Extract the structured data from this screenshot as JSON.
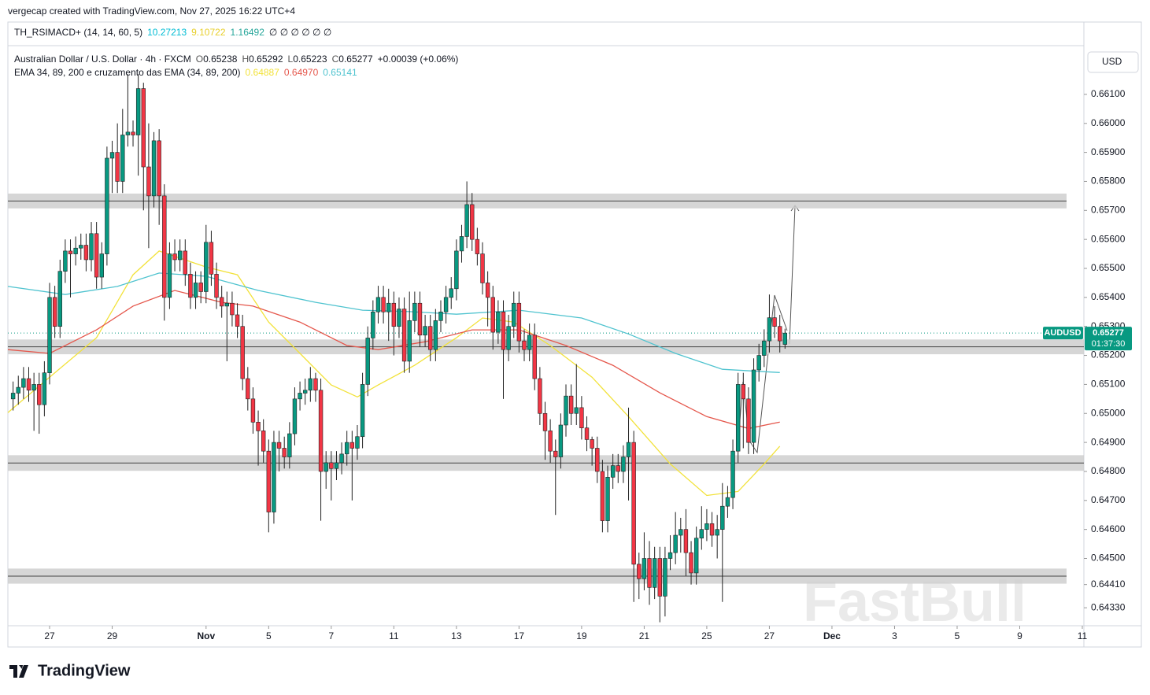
{
  "header": {
    "created": "vergecap created with TradingView.com, Nov 27, 2025 16:22 UTC+4"
  },
  "chart_data": {
    "type": "candlestick",
    "indicator": {
      "name": "TH_RSIMACD+ (14, 14, 60, 5)",
      "values": [
        {
          "text": "10.27213",
          "color": "#00bcd4"
        },
        {
          "text": "9.10722",
          "color": "#e8cf2a"
        },
        {
          "text": "1.16492",
          "color": "#26a69a"
        }
      ],
      "placeholders": "∅ ∅ ∅ ∅ ∅ ∅"
    },
    "symbol": "Australian Dollar / U.S. Dollar · 4h · FXCM",
    "ohlc": [
      {
        "label": "O",
        "value": "0.65238"
      },
      {
        "label": "H",
        "value": "0.65292"
      },
      {
        "label": "L",
        "value": "0.65223"
      },
      {
        "label": "C",
        "value": "0.65277"
      }
    ],
    "change": "+0.00039 (+0.06%)",
    "ema_title": "EMA 34, 89, 200 e cruzamento das EMA (34, 89, 200)",
    "ema": [
      {
        "color": "#f2e23a",
        "legend": "0.64887",
        "x": [
          -1,
          7,
          16,
          23,
          28,
          37,
          43,
          49,
          55,
          61,
          66,
          70,
          77,
          85,
          90,
          96,
          103,
          111,
          118,
          126,
          133,
          139,
          144,
          147
        ],
        "values": [
          0.65003,
          0.65125,
          0.65261,
          0.65478,
          0.6556,
          0.65505,
          0.65478,
          0.65315,
          0.65207,
          0.65098,
          0.65057,
          0.65098,
          0.65166,
          0.65261,
          0.65329,
          0.65315,
          0.65234,
          0.65125,
          0.64989,
          0.64826,
          0.64717,
          0.64731,
          0.64826,
          0.64887
        ]
      },
      {
        "color": "#e5574c",
        "legend": "0.64970",
        "x": [
          -1,
          7,
          16,
          23,
          31,
          40,
          46,
          55,
          64,
          70,
          79,
          88,
          97,
          106,
          115,
          124,
          133,
          141,
          147
        ],
        "values": [
          0.6522,
          0.65207,
          0.65288,
          0.6537,
          0.65424,
          0.65383,
          0.6537,
          0.65315,
          0.65234,
          0.6522,
          0.65247,
          0.65288,
          0.65288,
          0.65234,
          0.65166,
          0.65071,
          0.64989,
          0.64948,
          0.6497
        ]
      },
      {
        "color": "#4fc3cf",
        "legend": "0.65141",
        "x": [
          -1,
          10,
          20,
          28,
          37,
          47,
          58,
          67,
          76,
          85,
          97,
          109,
          118,
          127,
          136,
          147
        ],
        "values": [
          0.65438,
          0.6541,
          0.65438,
          0.65484,
          0.65473,
          0.65424,
          0.65383,
          0.65356,
          0.65351,
          0.65342,
          0.65356,
          0.65329,
          0.65274,
          0.65207,
          0.65152,
          0.65141
        ]
      }
    ],
    "currency": "USD",
    "up_color": "#089981",
    "down_color": "#f23645",
    "open": [
      0.6505,
      0.6507,
      0.6509,
      0.6512,
      0.6508,
      0.651,
      0.6503,
      0.6514,
      0.654,
      0.653,
      0.6549,
      0.6556,
      0.6555,
      0.6557,
      0.6558,
      0.6553,
      0.6562,
      0.6547,
      0.6555,
      0.6588,
      0.659,
      0.658,
      0.6596,
      0.6597,
      0.6596,
      0.6612,
      0.6585,
      0.6575,
      0.6594,
      0.6575,
      0.654,
      0.6555,
      0.6553,
      0.6556,
      0.6548,
      0.654,
      0.6545,
      0.6542,
      0.6559,
      0.6548,
      0.654,
      0.6537,
      0.6538,
      0.6534,
      0.653,
      0.6512,
      0.6505,
      0.6497,
      0.6494,
      0.6487,
      0.6466,
      0.649,
      0.6488,
      0.6485,
      0.6493,
      0.6505,
      0.6507,
      0.6508,
      0.6512,
      0.6508,
      0.648,
      0.6483,
      0.6481,
      0.6483,
      0.6486,
      0.649,
      0.6488,
      0.6492,
      0.651,
      0.6526,
      0.6535,
      0.654,
      0.6535,
      0.6538,
      0.653,
      0.6536,
      0.6518,
      0.6532,
      0.6538,
      0.6527,
      0.653,
      0.6522,
      0.6532,
      0.6535,
      0.654,
      0.6543,
      0.6556,
      0.6561,
      0.6572,
      0.656,
      0.6555,
      0.6545,
      0.654,
      0.6528,
      0.6535,
      0.6522,
      0.653,
      0.6538,
      0.6525,
      0.6522,
      0.6527,
      0.6512,
      0.65,
      0.6494,
      0.6487,
      0.6485,
      0.6496,
      0.6506,
      0.65,
      0.6502,
      0.6495,
      0.6491,
      0.6488,
      0.648,
      0.6463,
      0.6478,
      0.6482,
      0.648,
      0.6485,
      0.649,
      0.6448,
      0.6443,
      0.645,
      0.644,
      0.645,
      0.6437,
      0.645,
      0.6452,
      0.6458,
      0.646,
      0.6452,
      0.6445,
      0.6457,
      0.646,
      0.6462,
      0.6458,
      0.646,
      0.6468,
      0.6471,
      0.6487,
      0.651,
      0.6505,
      0.649,
      0.6515,
      0.652,
      0.6525,
      0.6533,
      0.653,
      0.65238
    ],
    "high": [
      0.6511,
      0.6513,
      0.6516,
      0.6516,
      0.6514,
      0.6514,
      0.6518,
      0.6545,
      0.6544,
      0.6553,
      0.656,
      0.656,
      0.6561,
      0.6562,
      0.6562,
      0.6566,
      0.6566,
      0.6559,
      0.6592,
      0.6594,
      0.66,
      0.6605,
      0.6617,
      0.6601,
      0.6617,
      0.6614,
      0.66,
      0.6597,
      0.6598,
      0.6579,
      0.6559,
      0.656,
      0.656,
      0.656,
      0.6552,
      0.6549,
      0.6549,
      0.6565,
      0.6563,
      0.6552,
      0.6544,
      0.6542,
      0.6542,
      0.6538,
      0.6534,
      0.6516,
      0.6509,
      0.6501,
      0.6498,
      0.6491,
      0.6494,
      0.6494,
      0.6492,
      0.6497,
      0.6509,
      0.6511,
      0.6512,
      0.6516,
      0.6514,
      0.6512,
      0.6487,
      0.6487,
      0.6487,
      0.649,
      0.6494,
      0.6494,
      0.6496,
      0.6514,
      0.653,
      0.6539,
      0.6544,
      0.6544,
      0.6543,
      0.6542,
      0.654,
      0.654,
      0.6542,
      0.6542,
      0.6542,
      0.6534,
      0.6534,
      0.6536,
      0.6539,
      0.6544,
      0.6547,
      0.656,
      0.6565,
      0.658,
      0.6576,
      0.6564,
      0.6559,
      0.6549,
      0.6544,
      0.6539,
      0.6539,
      0.6534,
      0.6542,
      0.6542,
      0.6529,
      0.6531,
      0.6531,
      0.6516,
      0.6504,
      0.6498,
      0.6491,
      0.65,
      0.651,
      0.651,
      0.6517,
      0.6506,
      0.6499,
      0.6492,
      0.6492,
      0.6484,
      0.6482,
      0.6486,
      0.6486,
      0.6489,
      0.6502,
      0.6494,
      0.6452,
      0.6459,
      0.6456,
      0.6454,
      0.6454,
      0.6454,
      0.6458,
      0.6466,
      0.6464,
      0.6467,
      0.6456,
      0.6461,
      0.6468,
      0.6467,
      0.6466,
      0.6465,
      0.6476,
      0.6475,
      0.6491,
      0.6514,
      0.6514,
      0.6509,
      0.6519,
      0.6524,
      0.6529,
      0.6541,
      0.6537,
      0.6534,
      0.65292
    ],
    "low": [
      0.6501,
      0.6503,
      0.6505,
      0.6504,
      0.6494,
      0.6493,
      0.6499,
      0.651,
      0.6526,
      0.6526,
      0.6545,
      0.654,
      0.6551,
      0.6553,
      0.6549,
      0.6549,
      0.6543,
      0.6543,
      0.6551,
      0.6576,
      0.6576,
      0.6576,
      0.6592,
      0.6592,
      0.6582,
      0.657,
      0.6557,
      0.6571,
      0.6565,
      0.6532,
      0.6536,
      0.6549,
      0.6549,
      0.6544,
      0.6536,
      0.6536,
      0.6538,
      0.6538,
      0.6544,
      0.6536,
      0.6533,
      0.6518,
      0.653,
      0.6526,
      0.6508,
      0.6501,
      0.6493,
      0.6482,
      0.6483,
      0.6459,
      0.6462,
      0.648,
      0.6481,
      0.6481,
      0.6489,
      0.6501,
      0.6503,
      0.6504,
      0.6504,
      0.6463,
      0.6474,
      0.647,
      0.6477,
      0.6479,
      0.6482,
      0.647,
      0.6484,
      0.6488,
      0.6506,
      0.6522,
      0.6531,
      0.6531,
      0.6525,
      0.652,
      0.6526,
      0.6514,
      0.6514,
      0.6528,
      0.6523,
      0.6523,
      0.6518,
      0.6518,
      0.6528,
      0.6531,
      0.6536,
      0.6539,
      0.6552,
      0.6557,
      0.6556,
      0.6551,
      0.6541,
      0.653,
      0.6522,
      0.6524,
      0.6505,
      0.6518,
      0.6526,
      0.6521,
      0.6518,
      0.6518,
      0.6508,
      0.6496,
      0.6484,
      0.6483,
      0.6465,
      0.6481,
      0.6492,
      0.6496,
      0.6496,
      0.6491,
      0.6487,
      0.6482,
      0.6476,
      0.6459,
      0.6459,
      0.6474,
      0.6476,
      0.6476,
      0.647,
      0.6435,
      0.6436,
      0.6439,
      0.6434,
      0.6436,
      0.6428,
      0.643,
      0.6446,
      0.6448,
      0.6452,
      0.6444,
      0.6441,
      0.6441,
      0.6453,
      0.6456,
      0.6454,
      0.645,
      0.6435,
      0.6464,
      0.6467,
      0.6483,
      0.6488,
      0.6486,
      0.6486,
      0.6511,
      0.6516,
      0.6521,
      0.6526,
      0.6521,
      0.65223
    ],
    "close": [
      0.6507,
      0.6509,
      0.6512,
      0.6508,
      0.651,
      0.6503,
      0.6514,
      0.654,
      0.653,
      0.6549,
      0.6556,
      0.6555,
      0.6557,
      0.6558,
      0.6553,
      0.6562,
      0.6547,
      0.6555,
      0.6588,
      0.659,
      0.658,
      0.6596,
      0.6597,
      0.6596,
      0.6612,
      0.6585,
      0.6575,
      0.6594,
      0.6575,
      0.654,
      0.6555,
      0.6553,
      0.6556,
      0.6548,
      0.654,
      0.6545,
      0.6542,
      0.6559,
      0.6548,
      0.654,
      0.6537,
      0.6538,
      0.6534,
      0.653,
      0.6512,
      0.6505,
      0.6497,
      0.6494,
      0.6487,
      0.6466,
      0.649,
      0.6488,
      0.6485,
      0.6493,
      0.6505,
      0.6507,
      0.6508,
      0.6512,
      0.6508,
      0.648,
      0.6483,
      0.6481,
      0.6483,
      0.6486,
      0.649,
      0.6488,
      0.6492,
      0.651,
      0.6526,
      0.6535,
      0.654,
      0.6535,
      0.6538,
      0.653,
      0.6536,
      0.6518,
      0.6532,
      0.6538,
      0.6527,
      0.653,
      0.6522,
      0.6532,
      0.6535,
      0.654,
      0.6543,
      0.6556,
      0.6561,
      0.6572,
      0.656,
      0.6555,
      0.6545,
      0.654,
      0.6528,
      0.6535,
      0.6522,
      0.653,
      0.6538,
      0.6525,
      0.6522,
      0.6527,
      0.6512,
      0.65,
      0.6494,
      0.6487,
      0.6485,
      0.6496,
      0.6506,
      0.65,
      0.6502,
      0.6495,
      0.6491,
      0.6488,
      0.648,
      0.6463,
      0.6478,
      0.6482,
      0.648,
      0.6485,
      0.649,
      0.6448,
      0.6443,
      0.645,
      0.644,
      0.645,
      0.6437,
      0.645,
      0.6452,
      0.6458,
      0.646,
      0.6452,
      0.6445,
      0.6457,
      0.646,
      0.6462,
      0.6458,
      0.646,
      0.6468,
      0.6471,
      0.6487,
      0.651,
      0.6505,
      0.649,
      0.6515,
      0.652,
      0.6525,
      0.6533,
      0.653,
      0.6525,
      0.65277
    ],
    "zones": [
      [
        0.65758,
        0.65707
      ],
      [
        0.65255,
        0.65204
      ],
      [
        0.64856,
        0.64802
      ],
      [
        0.64465,
        0.64413
      ]
    ],
    "last_price": {
      "symbol": "AUDUSD",
      "value": 0.65277,
      "label": "0.65277",
      "countdown": "01:37:30"
    },
    "xlim": [
      -1,
      205.3
    ],
    "xticks": [
      {
        "value": 7,
        "label": "27"
      },
      {
        "value": 19,
        "label": "29"
      },
      {
        "value": 37,
        "label": "Nov"
      },
      {
        "value": 49,
        "label": "5"
      },
      {
        "value": 61,
        "label": "7"
      },
      {
        "value": 73,
        "label": "11"
      },
      {
        "value": 85,
        "label": "13"
      },
      {
        "value": 97,
        "label": "17"
      },
      {
        "value": 109,
        "label": "19"
      },
      {
        "value": 121,
        "label": "21"
      },
      {
        "value": 133,
        "label": "25"
      },
      {
        "value": 145,
        "label": "27"
      },
      {
        "value": 157,
        "label": "Dec"
      },
      {
        "value": 169,
        "label": "3"
      },
      {
        "value": 181,
        "label": "5"
      },
      {
        "value": 193,
        "label": "9"
      },
      {
        "value": 205,
        "label": "11"
      }
    ],
    "ylim": [
      0.64268,
      0.66268
    ],
    "yticks": [
      {
        "value": 0.6433,
        "label": "0.64330"
      },
      {
        "value": 0.6441,
        "label": "0.64410"
      },
      {
        "value": 0.645,
        "label": "0.64500"
      },
      {
        "value": 0.646,
        "label": "0.64600"
      },
      {
        "value": 0.647,
        "label": "0.64700"
      },
      {
        "value": 0.648,
        "label": "0.64800"
      },
      {
        "value": 0.649,
        "label": "0.64900"
      },
      {
        "value": 0.65,
        "label": "0.65000"
      },
      {
        "value": 0.651,
        "label": "0.65100"
      },
      {
        "value": 0.652,
        "label": "0.65200"
      },
      {
        "value": 0.653,
        "label": "0.65300"
      },
      {
        "value": 0.654,
        "label": "0.65400"
      },
      {
        "value": 0.655,
        "label": "0.65500"
      },
      {
        "value": 0.656,
        "label": "0.65600"
      },
      {
        "value": 0.657,
        "label": "0.65700"
      },
      {
        "value": 0.658,
        "label": "0.65800"
      },
      {
        "value": 0.659,
        "label": "0.65900"
      },
      {
        "value": 0.66,
        "label": "0.66000"
      },
      {
        "value": 0.661,
        "label": "0.66100"
      }
    ]
  },
  "footer": {
    "brand": "TradingView"
  },
  "watermark": "FastBull"
}
